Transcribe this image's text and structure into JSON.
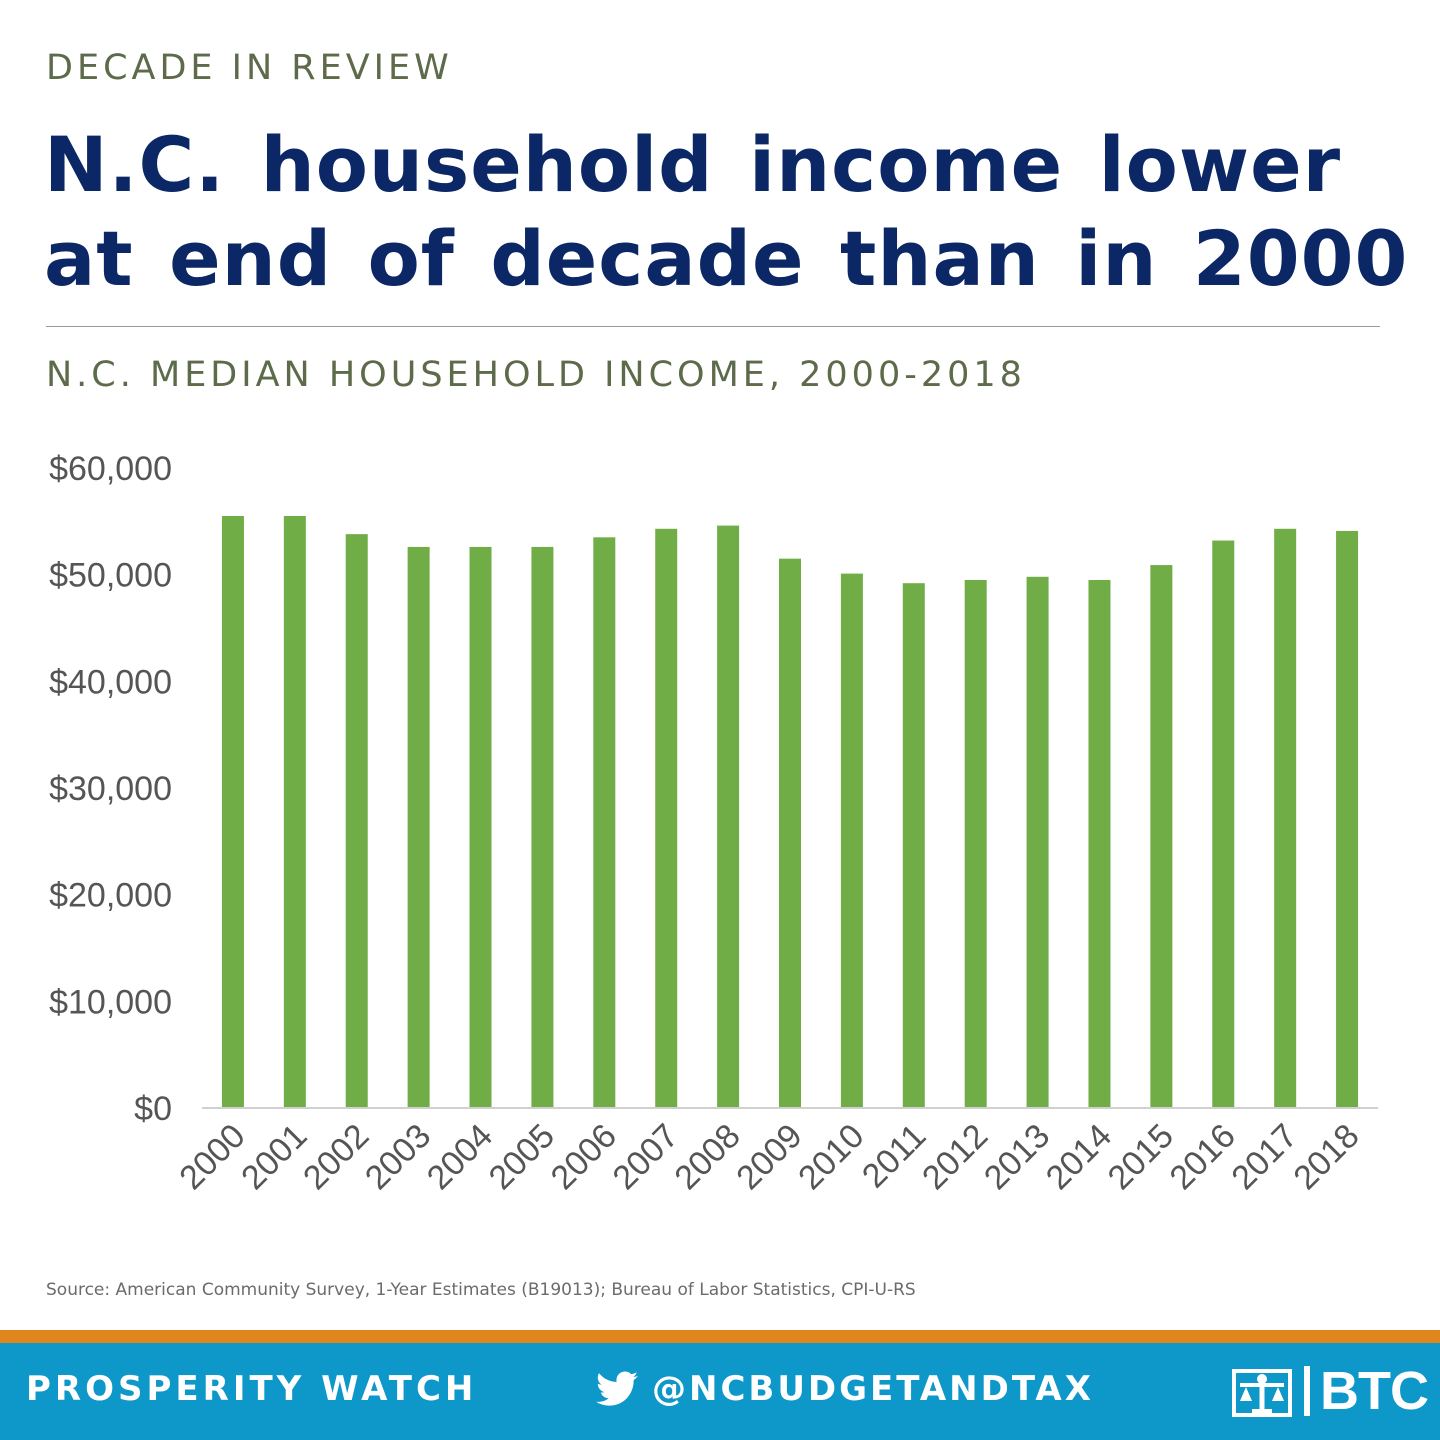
{
  "kicker": "DECADE IN REVIEW",
  "headline": {
    "line1": "N.C. household income lower",
    "line2": "at end of decade than in 2000"
  },
  "chart_data": {
    "type": "bar",
    "title": "N.C. MEDIAN HOUSEHOLD INCOME, 2000-2018",
    "categories": [
      "2000",
      "2001",
      "2002",
      "2003",
      "2004",
      "2005",
      "2006",
      "2007",
      "2008",
      "2009",
      "2010",
      "2011",
      "2012",
      "2013",
      "2014",
      "2015",
      "2016",
      "2017",
      "2018"
    ],
    "values": [
      55500,
      55500,
      53800,
      52600,
      52600,
      52600,
      53500,
      54300,
      54600,
      51500,
      50100,
      49200,
      49500,
      49800,
      49500,
      50900,
      53200,
      54300,
      54100
    ],
    "ylim": [
      0,
      60000
    ],
    "yticks": [
      "$0",
      "$10,000",
      "$20,000",
      "$30,000",
      "$40,000",
      "$50,000",
      "$60,000"
    ],
    "ytick_values": [
      0,
      10000,
      20000,
      30000,
      40000,
      50000,
      60000
    ],
    "xlabel": "",
    "ylabel": "",
    "bar_color": "#70ad47",
    "grid": false
  },
  "source": "Source: American Community Survey, 1-Year Estimates (B19013); Bureau of Labor Statistics, CPI-U-RS",
  "footer": {
    "left": "PROSPERITY WATCH",
    "handle": "@NCBUDGETANDTAX",
    "logo_text": "BTC",
    "icons": [
      "twitter-icon",
      "btc-logo-icon"
    ]
  },
  "colors": {
    "headline": "#0b2766",
    "kicker": "#5d6b4a",
    "footer_bg": "#0e97c9",
    "footer_accent": "#e0861e"
  }
}
